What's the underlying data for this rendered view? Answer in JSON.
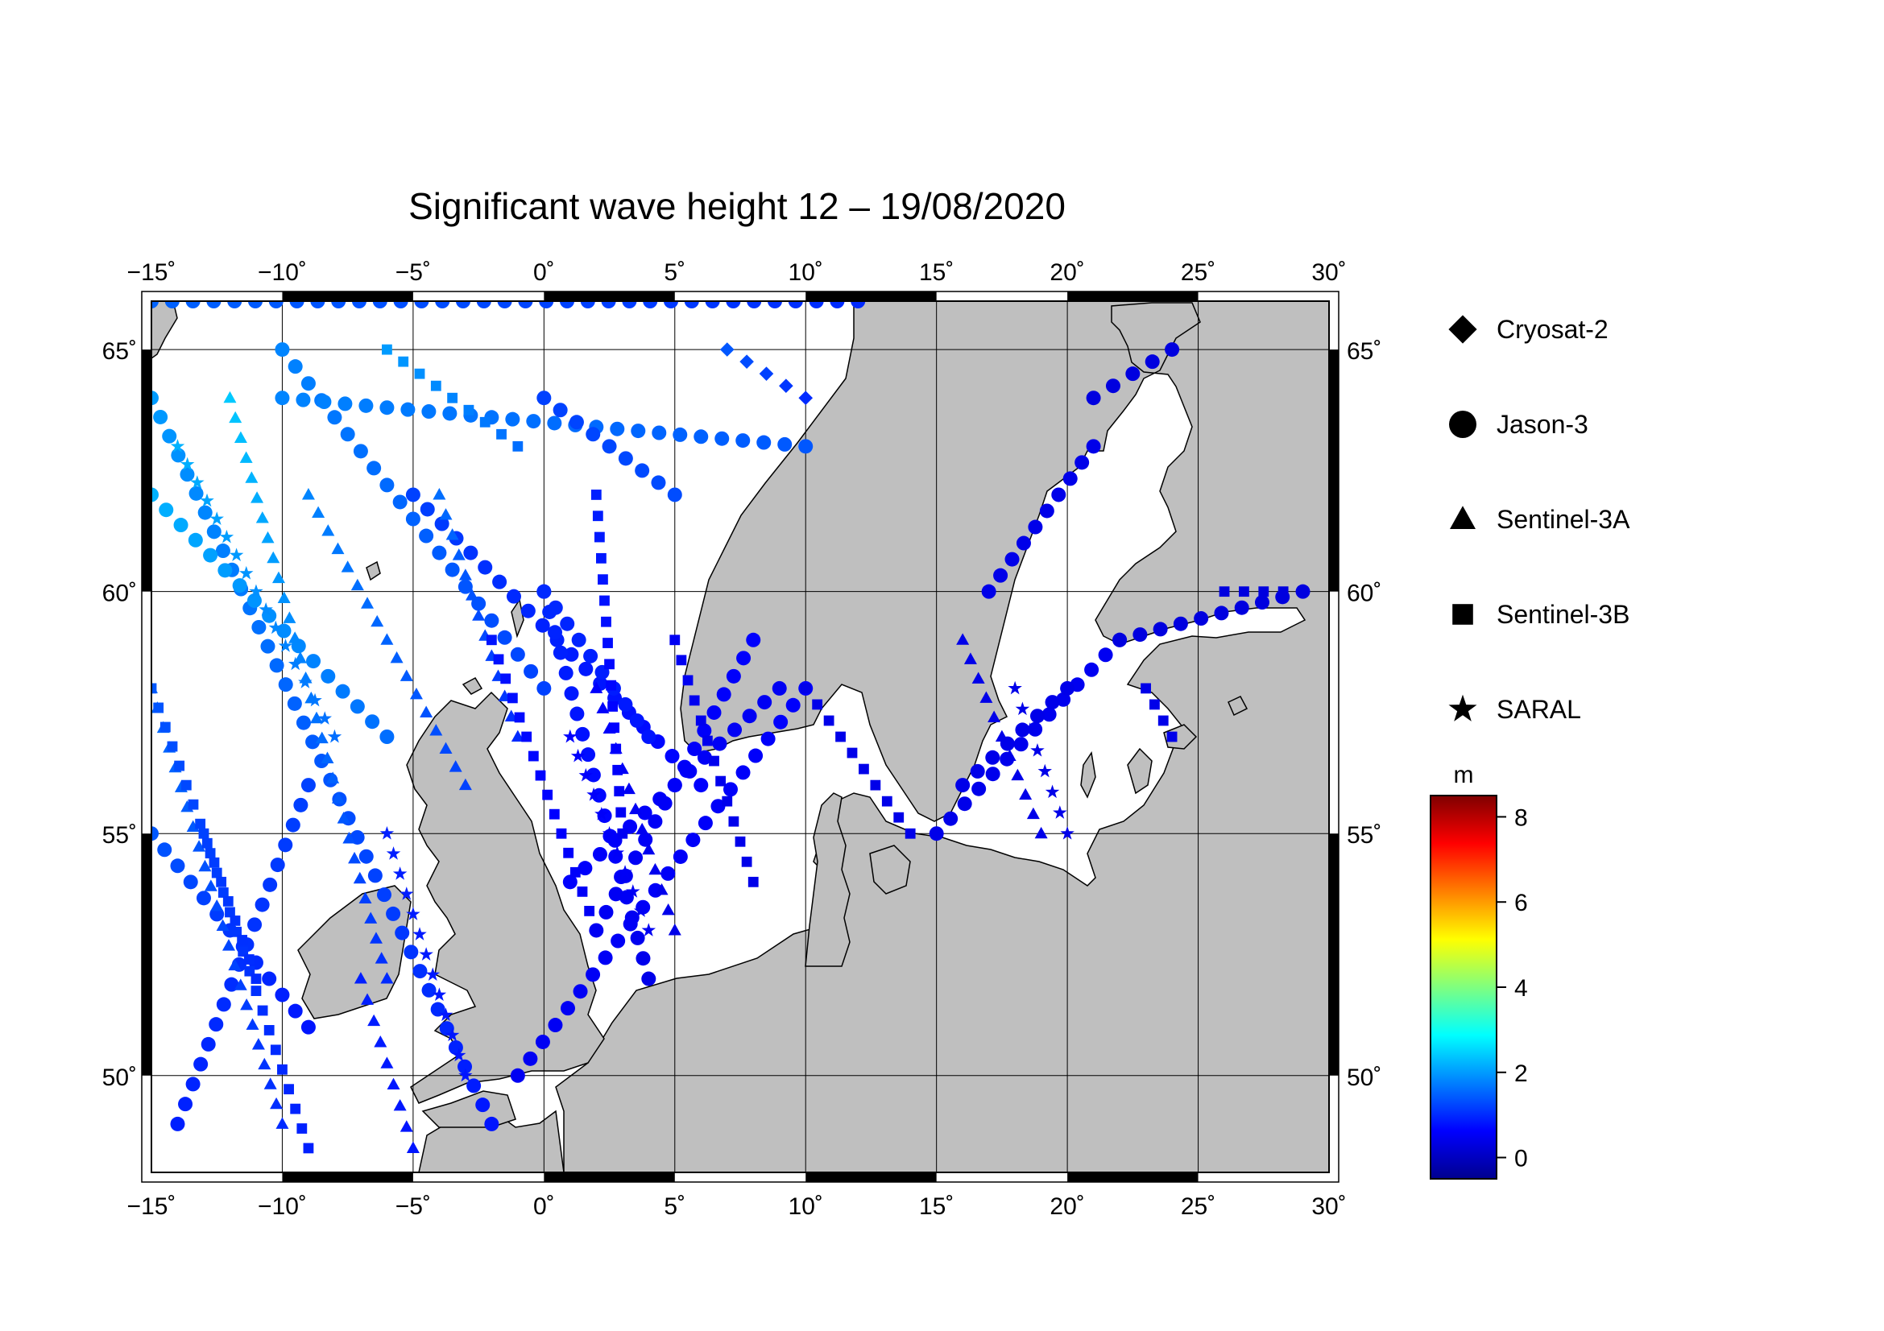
{
  "title": "Significant wave height 12 – 19/08/2020",
  "map": {
    "lon_range": [
      -15,
      30
    ],
    "lat_range": [
      48,
      66
    ],
    "lon_ticks": [
      -15,
      -10,
      -5,
      0,
      5,
      10,
      15,
      20,
      25,
      30
    ],
    "lat_ticks": [
      50,
      55,
      60,
      65
    ],
    "lon_tick_labels": [
      "−15˚",
      "−10˚",
      "−5˚",
      "0˚",
      "5˚",
      "10˚",
      "15˚",
      "20˚",
      "25˚",
      "30˚"
    ],
    "lat_tick_labels": [
      "50˚",
      "55˚",
      "60˚",
      "65˚"
    ],
    "land_color": "#bfbfbf",
    "sea_color": "#ffffff",
    "grid": true
  },
  "legend": {
    "items": [
      {
        "label": "Cryosat-2",
        "symbol": "diamond"
      },
      {
        "label": "Jason-3",
        "symbol": "circle"
      },
      {
        "label": "Sentinel-3A",
        "symbol": "triangle"
      },
      {
        "label": "Sentinel-3B",
        "symbol": "square"
      },
      {
        "label": "SARAL",
        "symbol": "star"
      }
    ]
  },
  "colorbar": {
    "unit": "m",
    "min": -0.5,
    "max": 8.5,
    "ticks": [
      0,
      2,
      4,
      6,
      8
    ],
    "tick_labels": [
      "0",
      "2",
      "4",
      "6",
      "8"
    ],
    "colors": [
      "#00008f",
      "#0000ff",
      "#007fff",
      "#00ffff",
      "#7fff7f",
      "#ffff00",
      "#ff7f00",
      "#ff0000",
      "#7f0000"
    ]
  },
  "chart_data": {
    "type": "scatter",
    "title": "Significant wave height 12 – 19/08/2020",
    "xlabel": "",
    "ylabel": "",
    "xlim": [
      -15,
      30
    ],
    "ylim": [
      48,
      66
    ],
    "value_unit": "m",
    "tracks": [
      {
        "satellite": "Jason-3",
        "from": [
          -15,
          64
        ],
        "to": [
          -2,
          49
        ],
        "hs_from": 2.0,
        "hs_to": 0.8
      },
      {
        "satellite": "Jason-3",
        "from": [
          -10,
          65
        ],
        "to": [
          0,
          58
        ],
        "hs_from": 1.8,
        "hs_to": 1.2
      },
      {
        "satellite": "Jason-3",
        "from": [
          -15,
          62
        ],
        "to": [
          -6,
          57
        ],
        "hs_from": 2.2,
        "hs_to": 1.6
      },
      {
        "satellite": "Jason-3",
        "from": [
          -15,
          55
        ],
        "to": [
          -9,
          51
        ],
        "hs_from": 1.4,
        "hs_to": 0.8
      },
      {
        "satellite": "Jason-3",
        "from": [
          -14,
          49
        ],
        "to": [
          -9,
          56
        ],
        "hs_from": 0.9,
        "hs_to": 1.2
      },
      {
        "satellite": "Jason-3",
        "from": [
          -5,
          62
        ],
        "to": [
          6,
          56
        ],
        "hs_from": 1.2,
        "hs_to": 0.6
      },
      {
        "satellite": "Jason-3",
        "from": [
          0,
          60
        ],
        "to": [
          4,
          52
        ],
        "hs_from": 1.0,
        "hs_to": 0.4
      },
      {
        "satellite": "Jason-3",
        "from": [
          -1,
          50
        ],
        "to": [
          10,
          58
        ],
        "hs_from": 0.5,
        "hs_to": 0.6
      },
      {
        "satellite": "Jason-3",
        "from": [
          1,
          54
        ],
        "to": [
          9,
          58
        ],
        "hs_from": 0.6,
        "hs_to": 0.5
      },
      {
        "satellite": "Jason-3",
        "from": [
          2,
          53
        ],
        "to": [
          8,
          59
        ],
        "hs_from": 0.5,
        "hs_to": 0.6
      },
      {
        "satellite": "Jason-3",
        "from": [
          4,
          57
        ],
        "to": [
          0,
          60
        ],
        "hs_from": 0.8,
        "hs_to": 1.0
      },
      {
        "satellite": "Jason-3",
        "from": [
          -15,
          66
        ],
        "to": [
          12,
          66
        ],
        "hs_from": 1.5,
        "hs_to": 1.0
      },
      {
        "satellite": "Jason-3",
        "from": [
          -10,
          64
        ],
        "to": [
          10,
          63
        ],
        "hs_from": 1.8,
        "hs_to": 1.4
      },
      {
        "satellite": "Jason-3",
        "from": [
          0,
          64
        ],
        "to": [
          5,
          62
        ],
        "hs_from": 1.2,
        "hs_to": 1.3
      },
      {
        "satellite": "Jason-3",
        "from": [
          15,
          55
        ],
        "to": [
          22,
          59
        ],
        "hs_from": 0.4,
        "hs_to": 0.5
      },
      {
        "satellite": "Jason-3",
        "from": [
          16,
          56
        ],
        "to": [
          20,
          58
        ],
        "hs_from": 0.4,
        "hs_to": 0.4
      },
      {
        "satellite": "Jason-3",
        "from": [
          17,
          60
        ],
        "to": [
          21,
          63
        ],
        "hs_from": 0.4,
        "hs_to": 0.4
      },
      {
        "satellite": "Jason-3",
        "from": [
          21,
          64
        ],
        "to": [
          24,
          65
        ],
        "hs_from": 0.3,
        "hs_to": 0.3
      },
      {
        "satellite": "Jason-3",
        "from": [
          22,
          59
        ],
        "to": [
          29,
          60
        ],
        "hs_from": 0.3,
        "hs_to": 0.3
      },
      {
        "satellite": "Sentinel-3A",
        "from": [
          -12,
          64
        ],
        "to": [
          -6,
          52
        ],
        "hs_from": 2.4,
        "hs_to": 1.0
      },
      {
        "satellite": "Sentinel-3A",
        "from": [
          -15,
          58
        ],
        "to": [
          -10,
          49
        ],
        "hs_from": 1.6,
        "hs_to": 1.0
      },
      {
        "satellite": "Sentinel-3A",
        "from": [
          -4,
          62
        ],
        "to": [
          -1,
          57
        ],
        "hs_from": 1.6,
        "hs_to": 1.0
      },
      {
        "satellite": "Sentinel-3A",
        "from": [
          -9,
          62
        ],
        "to": [
          -3,
          56
        ],
        "hs_from": 1.8,
        "hs_to": 1.2
      },
      {
        "satellite": "Sentinel-3A",
        "from": [
          2,
          58
        ],
        "to": [
          5,
          53
        ],
        "hs_from": 0.6,
        "hs_to": 0.4
      },
      {
        "satellite": "Sentinel-3A",
        "from": [
          16,
          59
        ],
        "to": [
          19,
          55
        ],
        "hs_from": 0.4,
        "hs_to": 0.4
      },
      {
        "satellite": "Sentinel-3A",
        "from": [
          -7,
          52
        ],
        "to": [
          -5,
          48.5
        ],
        "hs_from": 0.9,
        "hs_to": 0.8
      },
      {
        "satellite": "Sentinel-3B",
        "from": [
          -13,
          55
        ],
        "to": [
          -9,
          48.5
        ],
        "hs_from": 1.2,
        "hs_to": 0.9
      },
      {
        "satellite": "Sentinel-3B",
        "from": [
          -15,
          58
        ],
        "to": [
          -11,
          52
        ],
        "hs_from": 1.4,
        "hs_to": 1.0
      },
      {
        "satellite": "Sentinel-3B",
        "from": [
          2,
          62
        ],
        "to": [
          3,
          55
        ],
        "hs_from": 0.9,
        "hs_to": 0.5
      },
      {
        "satellite": "Sentinel-3B",
        "from": [
          -2,
          59
        ],
        "to": [
          2,
          53
        ],
        "hs_from": 0.8,
        "hs_to": 0.5
      },
      {
        "satellite": "Sentinel-3B",
        "from": [
          5,
          59
        ],
        "to": [
          8,
          54
        ],
        "hs_from": 0.5,
        "hs_to": 0.4
      },
      {
        "satellite": "Sentinel-3B",
        "from": [
          10,
          58
        ],
        "to": [
          14,
          55
        ],
        "hs_from": 0.4,
        "hs_to": 0.4
      },
      {
        "satellite": "Sentinel-3B",
        "from": [
          23,
          58
        ],
        "to": [
          24,
          57
        ],
        "hs_from": 0.4,
        "hs_to": 0.4
      },
      {
        "satellite": "Sentinel-3B",
        "from": [
          26,
          60
        ],
        "to": [
          29,
          60
        ],
        "hs_from": 0.3,
        "hs_to": 0.3
      },
      {
        "satellite": "Sentinel-3B",
        "from": [
          -6,
          65
        ],
        "to": [
          -1,
          63
        ],
        "hs_from": 2.0,
        "hs_to": 1.6
      },
      {
        "satellite": "SARAL",
        "from": [
          -14,
          63
        ],
        "to": [
          -8,
          57
        ],
        "hs_from": 2.2,
        "hs_to": 1.6
      },
      {
        "satellite": "SARAL",
        "from": [
          1,
          57
        ],
        "to": [
          4,
          53
        ],
        "hs_from": 0.6,
        "hs_to": 0.5
      },
      {
        "satellite": "SARAL",
        "from": [
          -6,
          55
        ],
        "to": [
          -3,
          50
        ],
        "hs_from": 0.9,
        "hs_to": 0.8
      },
      {
        "satellite": "SARAL",
        "from": [
          18,
          58
        ],
        "to": [
          20,
          55
        ],
        "hs_from": 0.4,
        "hs_to": 0.4
      },
      {
        "satellite": "Cryosat-2",
        "from": [
          7,
          65
        ],
        "to": [
          10,
          64
        ],
        "hs_from": 1.4,
        "hs_to": 1.0
      }
    ]
  }
}
